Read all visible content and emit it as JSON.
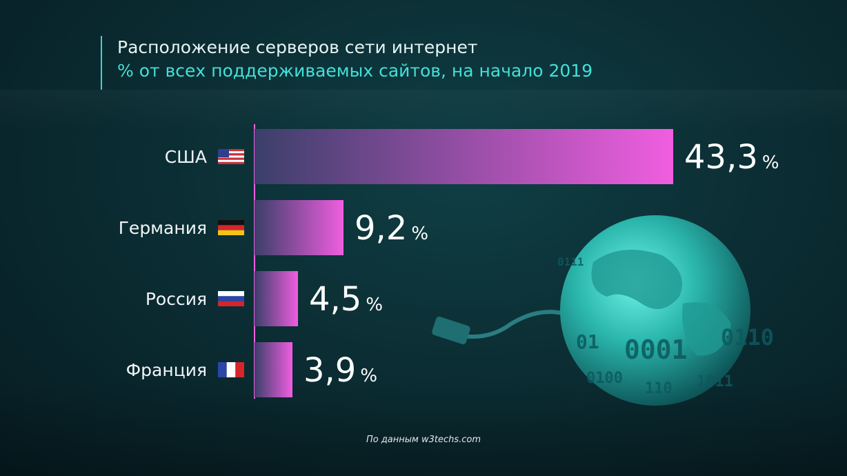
{
  "header": {
    "title": "Расположение серверов сети интернет",
    "subtitle": "% от всех поддерживаемых сайтов, на начало 2019"
  },
  "chart_data": {
    "type": "bar",
    "orientation": "horizontal",
    "title": "Расположение серверов сети интернет",
    "subtitle": "% от всех поддерживаемых сайтов, на начало 2019",
    "categories": [
      "США",
      "Германия",
      "Россия",
      "Франция"
    ],
    "values": [
      43.3,
      9.2,
      4.5,
      3.9
    ],
    "value_labels": [
      "43,3",
      "9,2",
      "4,5",
      "3,9"
    ],
    "unit": "%",
    "flags": [
      "us-flag-icon",
      "germany-flag-icon",
      "russia-flag-icon",
      "france-flag-icon"
    ],
    "bar_gradient": [
      "#3b3f6a",
      "#f05ee0"
    ],
    "grid": false
  },
  "source": "По данным w3techs.com",
  "colors": {
    "accent": "#43e0d8",
    "bar_end": "#f05ee0",
    "bar_start": "#3b3f6a"
  },
  "globe": {
    "binary_text": [
      "01",
      "0001",
      "0110",
      "0100",
      "110",
      "1011",
      "0111"
    ]
  }
}
